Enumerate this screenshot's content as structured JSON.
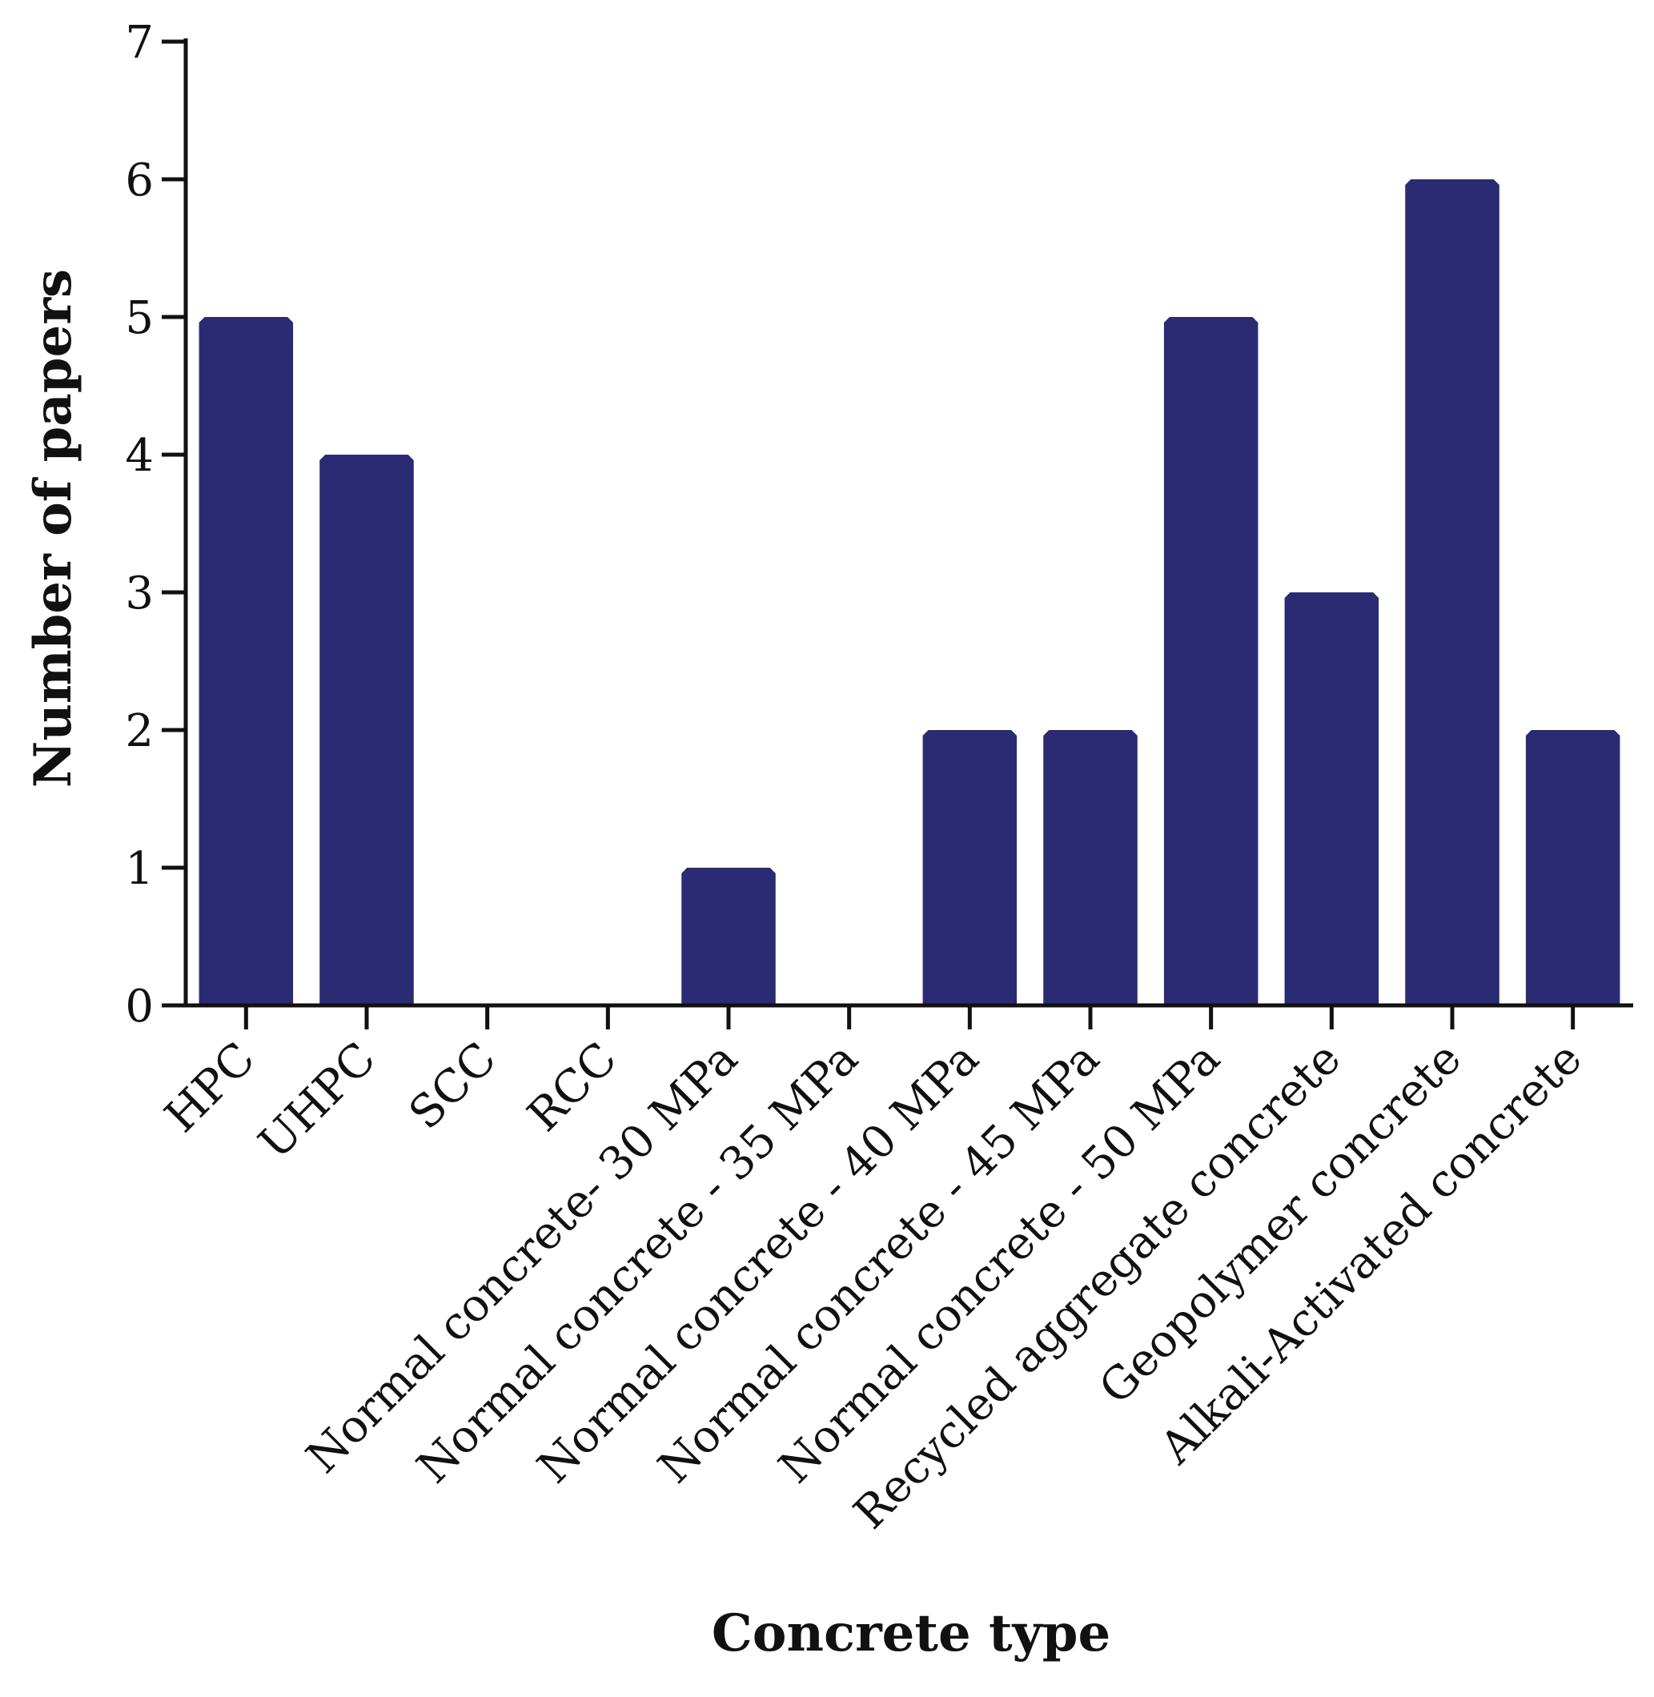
{
  "chart_data": {
    "type": "bar",
    "title": "",
    "xlabel": "Concrete type",
    "ylabel": "Number of papers",
    "ylim": [
      0,
      7
    ],
    "yticks": [
      0,
      1,
      2,
      3,
      4,
      5,
      6,
      7
    ],
    "grid": false,
    "bar_color": "#2a2b72",
    "categories": [
      "HPC",
      "UHPC",
      "SCC",
      "RCC",
      "Normal concrete- 30 MPa",
      "Normal concrete - 35 MPa",
      "Normal concrete - 40 MPa",
      "Normal concrete - 45 MPa",
      "Normal concrete - 50 MPa",
      "Recycled aggregate concrete",
      "Geopolymer concrete",
      "Alkali-Activated concrete"
    ],
    "values": [
      5,
      4,
      0,
      0,
      1,
      0,
      2,
      2,
      5,
      3,
      6,
      2
    ]
  }
}
